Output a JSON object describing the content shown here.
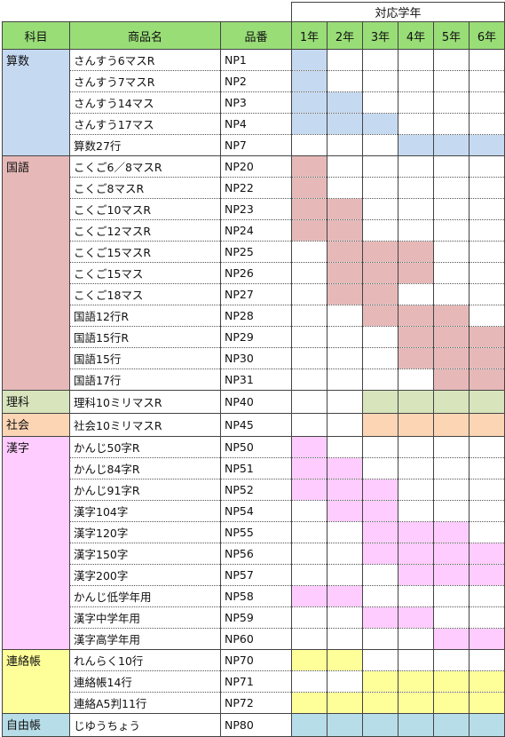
{
  "header": {
    "grade_super": "対応学年",
    "subject": "科目",
    "name": "商品名",
    "code": "品番",
    "grades": [
      "1年",
      "2年",
      "3年",
      "4年",
      "5年",
      "6年"
    ]
  },
  "groups": [
    {
      "subject": "算数",
      "color": "#c5d9f1",
      "items": [
        {
          "name": "さんすう6マスR",
          "code": "NP1",
          "grades": [
            1,
            0,
            0,
            0,
            0,
            0
          ]
        },
        {
          "name": "さんすう7マスR",
          "code": "NP2",
          "grades": [
            1,
            0,
            0,
            0,
            0,
            0
          ]
        },
        {
          "name": "さんすう14マス",
          "code": "NP3",
          "grades": [
            1,
            1,
            0,
            0,
            0,
            0
          ]
        },
        {
          "name": "さんすう17マス",
          "code": "NP4",
          "grades": [
            1,
            1,
            1,
            0,
            0,
            0
          ]
        },
        {
          "name": "算数27行",
          "code": "NP7",
          "grades": [
            0,
            0,
            0,
            1,
            1,
            1
          ]
        }
      ]
    },
    {
      "subject": "国語",
      "color": "#e6b9b8",
      "items": [
        {
          "name": "こくご6／8マスR",
          "code": "NP20",
          "grades": [
            1,
            0,
            0,
            0,
            0,
            0
          ]
        },
        {
          "name": "こくご8マスR",
          "code": "NP22",
          "grades": [
            1,
            0,
            0,
            0,
            0,
            0
          ]
        },
        {
          "name": "こくご10マスR",
          "code": "NP23",
          "grades": [
            1,
            1,
            0,
            0,
            0,
            0
          ]
        },
        {
          "name": "こくご12マスR",
          "code": "NP24",
          "grades": [
            1,
            1,
            0,
            0,
            0,
            0
          ]
        },
        {
          "name": "こくご15マスR",
          "code": "NP25",
          "grades": [
            0,
            1,
            1,
            1,
            0,
            0
          ]
        },
        {
          "name": "こくご15マス",
          "code": "NP26",
          "grades": [
            0,
            1,
            1,
            1,
            0,
            0
          ]
        },
        {
          "name": "こくご18マス",
          "code": "NP27",
          "grades": [
            0,
            1,
            1,
            0,
            0,
            0
          ]
        },
        {
          "name": "国語12行R",
          "code": "NP28",
          "grades": [
            0,
            0,
            1,
            1,
            1,
            0
          ]
        },
        {
          "name": "国語15行R",
          "code": "NP29",
          "grades": [
            0,
            0,
            0,
            1,
            1,
            1
          ]
        },
        {
          "name": "国語15行",
          "code": "NP30",
          "grades": [
            0,
            0,
            0,
            1,
            1,
            1
          ]
        },
        {
          "name": "国語17行",
          "code": "NP31",
          "grades": [
            0,
            0,
            0,
            0,
            1,
            1
          ]
        }
      ]
    },
    {
      "subject": "理科",
      "color": "#d7e4bc",
      "items": [
        {
          "name": "理科10ミリマスR",
          "code": "NP40",
          "grades": [
            0,
            0,
            1,
            1,
            1,
            1
          ]
        }
      ]
    },
    {
      "subject": "社会",
      "color": "#fcd5b4",
      "items": [
        {
          "name": "社会10ミリマスR",
          "code": "NP45",
          "grades": [
            0,
            0,
            1,
            1,
            1,
            1
          ]
        }
      ]
    },
    {
      "subject": "漢字",
      "color": "#ffccff",
      "items": [
        {
          "name": "かんじ50字R",
          "code": "NP50",
          "grades": [
            1,
            0,
            0,
            0,
            0,
            0
          ]
        },
        {
          "name": "かんじ84字R",
          "code": "NP51",
          "grades": [
            1,
            1,
            0,
            0,
            0,
            0
          ]
        },
        {
          "name": "かんじ91字R",
          "code": "NP52",
          "grades": [
            1,
            1,
            1,
            0,
            0,
            0
          ]
        },
        {
          "name": "漢字104字",
          "code": "NP54",
          "grades": [
            0,
            1,
            1,
            0,
            0,
            0
          ]
        },
        {
          "name": "漢字120字",
          "code": "NP55",
          "grades": [
            0,
            0,
            1,
            1,
            1,
            0
          ]
        },
        {
          "name": "漢字150字",
          "code": "NP56",
          "grades": [
            0,
            0,
            1,
            1,
            1,
            1
          ]
        },
        {
          "name": "漢字200字",
          "code": "NP57",
          "grades": [
            0,
            0,
            0,
            1,
            1,
            1
          ]
        },
        {
          "name": "かんじ低学年用",
          "code": "NP58",
          "grades": [
            1,
            1,
            0,
            0,
            0,
            0
          ]
        },
        {
          "name": "漢字中学年用",
          "code": "NP59",
          "grades": [
            0,
            0,
            1,
            1,
            0,
            0
          ]
        },
        {
          "name": "漢字高学年用",
          "code": "NP60",
          "grades": [
            0,
            0,
            0,
            0,
            1,
            1
          ]
        }
      ]
    },
    {
      "subject": "連絡帳",
      "color": "#ffff99",
      "items": [
        {
          "name": "れんらく10行",
          "code": "NP70",
          "grades": [
            1,
            1,
            0,
            0,
            0,
            0
          ]
        },
        {
          "name": "連絡帳14行",
          "code": "NP71",
          "grades": [
            0,
            0,
            1,
            1,
            1,
            1
          ]
        },
        {
          "name": "連絡A5判11行",
          "code": "NP72",
          "grades": [
            1,
            1,
            1,
            1,
            1,
            1
          ]
        }
      ]
    },
    {
      "subject": "自由帳",
      "color": "#b7dde8",
      "items": [
        {
          "name": "じゆうちょう",
          "code": "NP80",
          "grades": [
            1,
            1,
            1,
            1,
            1,
            1
          ]
        }
      ]
    }
  ]
}
